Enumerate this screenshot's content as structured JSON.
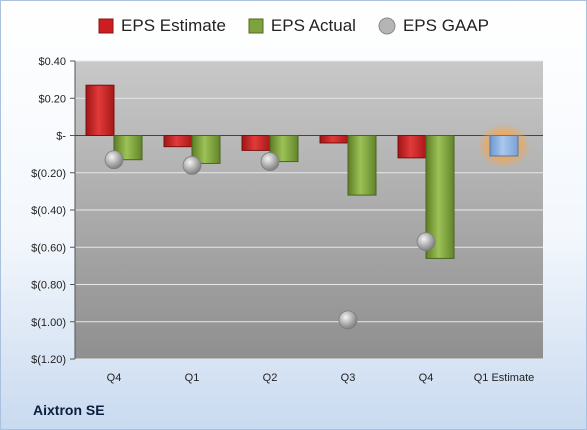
{
  "company": "Aixtron SE",
  "colors": {
    "estimate": "#cc1e1e",
    "actual": "#7ea33c",
    "gaap": "#a5a5a5",
    "future_estimate": "#8fb4e3",
    "future_glow": "#f5a54a"
  },
  "chart_data": {
    "type": "bar",
    "legend_position": "top",
    "grid": true,
    "categories": [
      "Q4",
      "Q1",
      "Q2",
      "Q3",
      "Q4",
      "Q1 Estimate"
    ],
    "series": [
      {
        "name": "EPS Estimate",
        "kind": "bar",
        "values": [
          0.27,
          -0.06,
          -0.08,
          -0.04,
          -0.12,
          -0.11
        ]
      },
      {
        "name": "EPS Actual",
        "kind": "bar",
        "values": [
          -0.13,
          -0.15,
          -0.14,
          -0.32,
          -0.66,
          null
        ]
      },
      {
        "name": "EPS GAAP",
        "kind": "marker",
        "values": [
          -0.13,
          -0.16,
          -0.14,
          -0.99,
          -0.57,
          null
        ]
      }
    ],
    "y_ticks": [
      0.4,
      0.2,
      0.0,
      -0.2,
      -0.4,
      -0.6,
      -0.8,
      -1.0,
      -1.2
    ],
    "y_tick_labels": [
      "$0.40",
      "$0.20",
      "$-",
      "$(0.20)",
      "$(0.40)",
      "$(0.60)",
      "$(0.80)",
      "$(1.00)",
      "$(1.20)"
    ],
    "ylim": [
      -1.2,
      0.4
    ]
  }
}
